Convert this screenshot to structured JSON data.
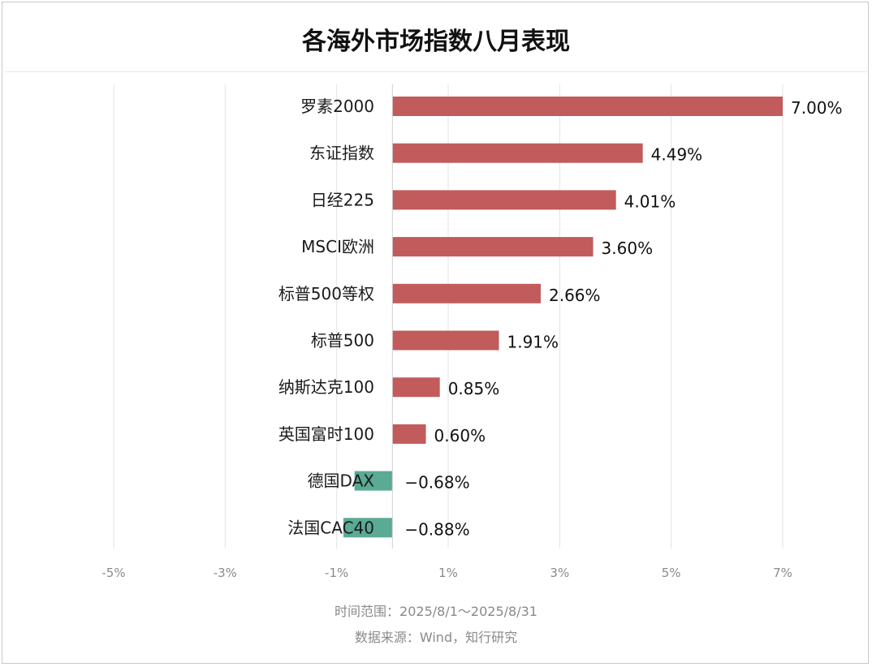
{
  "chart_data": {
    "type": "bar",
    "orientation": "horizontal",
    "title": "各海外市场指数八月表现",
    "categories": [
      "罗素2000",
      "东证指数",
      "日经225",
      "MSCI欧洲",
      "标普500等权",
      "标普500",
      "纳斯达克100",
      "英国富时100",
      "德国DAX",
      "法国CAC40"
    ],
    "values": [
      7.0,
      4.49,
      4.01,
      3.6,
      2.66,
      1.91,
      0.85,
      0.6,
      -0.68,
      -0.88
    ],
    "value_labels": [
      "7.00%",
      "4.49%",
      "4.01%",
      "3.60%",
      "2.66%",
      "1.91%",
      "0.85%",
      "0.60%",
      "−0.68%",
      "−0.88%"
    ],
    "xlim": [
      -5,
      7
    ],
    "ticks": [
      -5,
      -3,
      -1,
      1,
      3,
      5,
      7
    ],
    "tick_labels": [
      "-5%",
      "-3%",
      "-1%",
      "1%",
      "3%",
      "5%",
      "7%"
    ],
    "grid": true,
    "colors": {
      "positive": "#c25b5b",
      "negative": "#5aaa94"
    }
  },
  "footer": {
    "range": "时间范围：2025/8/1～2025/8/31",
    "source": "数据来源：Wind，知行研究"
  }
}
